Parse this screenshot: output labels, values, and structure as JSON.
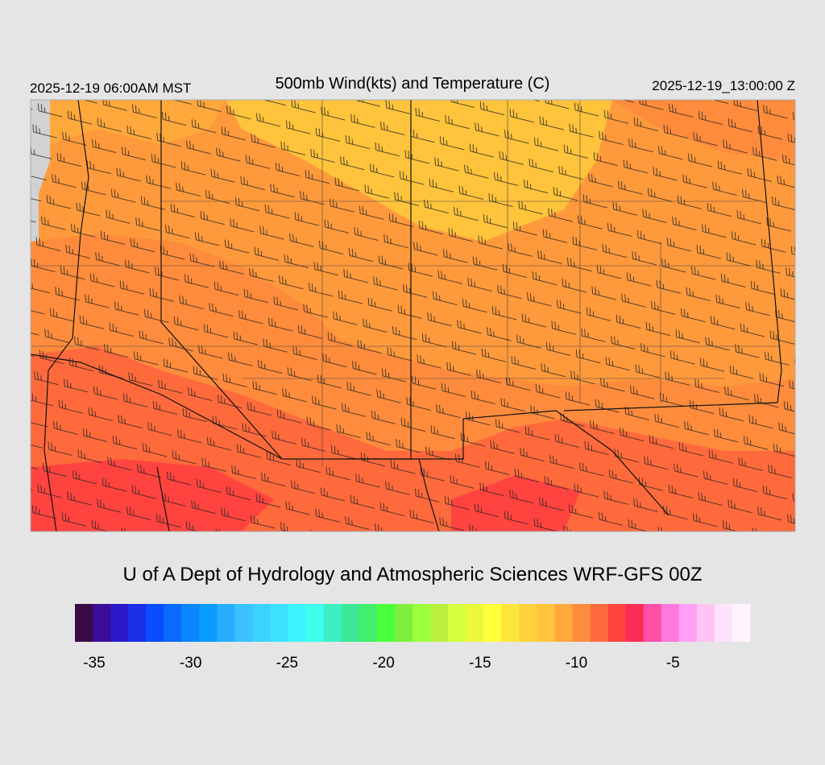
{
  "header": {
    "left": "2025-12-19 06:00AM MST",
    "title": "500mb Wind(kts) and Temperature (C)",
    "right": "2025-12-19_13:00:00 Z"
  },
  "credit": "U of A Dept of Hydrology and Atmospheric Sciences WRF-GFS 00Z",
  "colorbar": {
    "range": [
      -36,
      -1
    ],
    "ticks": [
      -35,
      -30,
      -25,
      -20,
      -15,
      -10,
      -5
    ],
    "colors": [
      "#3a0a48",
      "#3a0c98",
      "#2a18c8",
      "#1a2ee8",
      "#0a4cff",
      "#0a6aff",
      "#0a86ff",
      "#0a9cff",
      "#28aeff",
      "#3cc2ff",
      "#3cd2ff",
      "#3ce2ff",
      "#3cf4ff",
      "#3cffee",
      "#3cf0c4",
      "#3ce896",
      "#40f06a",
      "#4cff3c",
      "#7cf03c",
      "#9cff3c",
      "#b8f03c",
      "#d4ff3c",
      "#ecf83c",
      "#ffff3c",
      "#ffe63c",
      "#ffd23c",
      "#ffc43c",
      "#ffa83c",
      "#ff8c3c",
      "#ff6a3c",
      "#ff4440",
      "#ff2c58",
      "#ff50a8",
      "#ff78dc",
      "#ffa0f4",
      "#ffc4f4",
      "#ffe2fc",
      "#fff4fe"
    ]
  }
}
